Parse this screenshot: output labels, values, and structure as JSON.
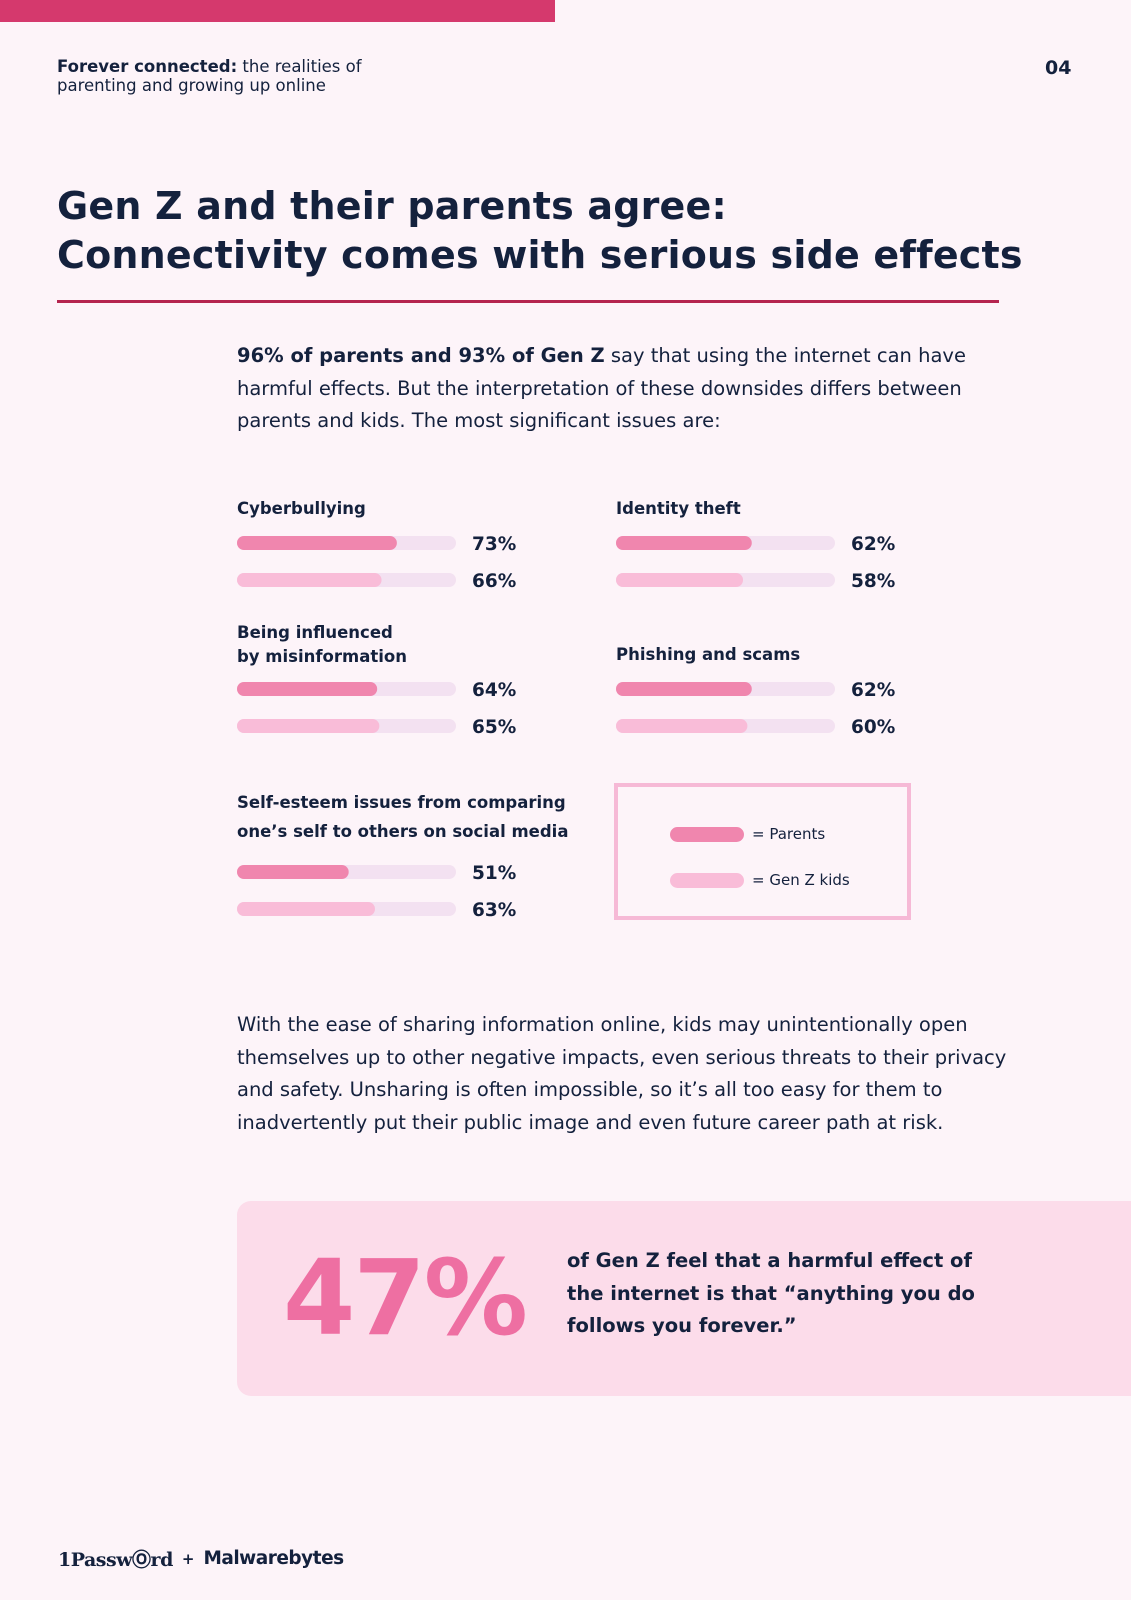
{
  "header": {
    "title_bold": "Forever connected:",
    "title_rest_line1": "the realities of",
    "title_line2": "parenting and growing up online",
    "page_number": "04"
  },
  "title": {
    "line1": "Gen Z and their parents agree:",
    "line2": "Connectivity comes with serious side effects"
  },
  "intro": {
    "bold": "96% of parents and 93% of Gen Z",
    "rest": "say that using the internet can have harmful effects. But the interpretation of these downsides differs between parents and kids. The most significant issues are:"
  },
  "colors": {
    "parents": "#f086ae",
    "genz": "#f9bcd8",
    "track": "#f3e1f1",
    "accent_bar": "#d5396d",
    "rule": "#b5244f",
    "big_stat": "#ee6fa2",
    "callout_bg": "#fcdcea",
    "legend_border": "#f6b9d6",
    "text": "#14213d"
  },
  "chart_data": {
    "type": "bar",
    "orientation": "horizontal",
    "unit": "%",
    "xlim": [
      0,
      100
    ],
    "series_names": [
      "Parents",
      "Gen Z kids"
    ],
    "categories": [
      {
        "label": [
          "Cyberbullying"
        ],
        "parents": 73,
        "genz": 66
      },
      {
        "label": [
          "Identity theft"
        ],
        "parents": 62,
        "genz": 58
      },
      {
        "label": [
          "Being influenced",
          "by misinformation"
        ],
        "parents": 64,
        "genz": 65
      },
      {
        "label": [
          "Phishing and scams"
        ],
        "parents": 62,
        "genz": 60
      },
      {
        "label": [
          "Self-esteem issues from comparing",
          "one’s self to others on social media"
        ],
        "parents": 51,
        "genz": 63
      }
    ]
  },
  "legend": {
    "parents_label": "= Parents",
    "genz_label": "= Gen Z kids"
  },
  "body2": "With the ease of sharing information online, kids may unintentionally open themselves up to other negative impacts, even serious threats to their privacy and safety. Unsharing is often impossible, so it’s all too easy for them to inadvertently put their public image and even future career path at risk.",
  "callout": {
    "stat": "47%",
    "text": "of Gen Z feel that a harmful effect of the internet is that “anything you do follows you forever.”"
  },
  "footer": {
    "logo_1": "1PasswⓄrd",
    "plus": "+",
    "logo_2": "Malwarebytes"
  }
}
